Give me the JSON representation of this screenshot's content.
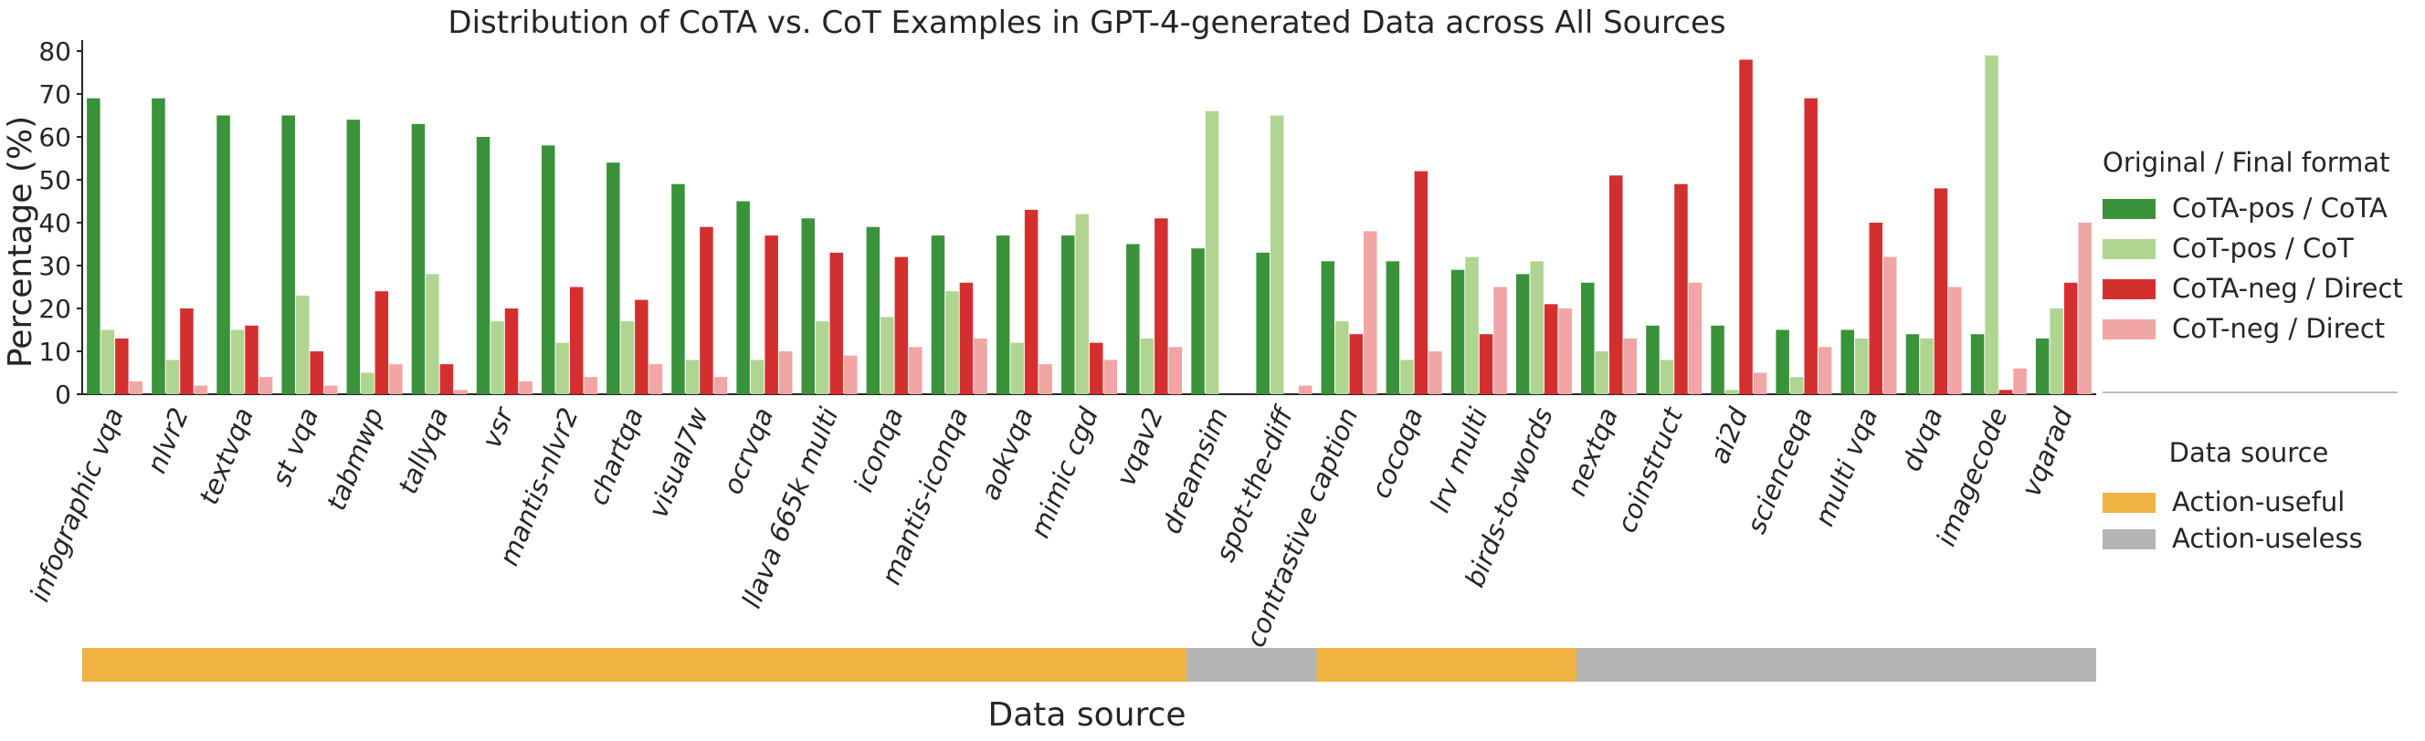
{
  "chart_data": {
    "type": "bar",
    "title": "Distribution of CoTA vs. CoT Examples in GPT-4-generated Data across All Sources",
    "xlabel": "Data source",
    "ylabel": "Percentage (%)",
    "ylim": [
      0,
      80
    ],
    "yticks": [
      "0",
      "10",
      "20",
      "30",
      "40",
      "50",
      "60",
      "70",
      "80"
    ],
    "grid": false,
    "categories": [
      "infographic vqa",
      "nlvr2",
      "textvqa",
      "st vqa",
      "tabmwp",
      "tallyqa",
      "vsr",
      "mantis-nlvr2",
      "chartqa",
      "visual7w",
      "ocrvqa",
      "llava 665k multi",
      "iconqa",
      "mantis-iconqa",
      "aokvqa",
      "mimic cgd",
      "vqav2",
      "dreamsim",
      "spot-the-diff",
      "contrastive caption",
      "cocoqa",
      "lrv multi",
      "birds-to-words",
      "nextqa",
      "coinstruct",
      "ai2d",
      "scienceqa",
      "multi vqa",
      "dvqa",
      "imagecode",
      "vqarad"
    ],
    "series": [
      {
        "name": "CoTA-pos / CoTA",
        "color": "#3a923a",
        "values": [
          69,
          69,
          65,
          65,
          64,
          63,
          60,
          58,
          54,
          49,
          45,
          41,
          39,
          37,
          37,
          37,
          35,
          34,
          33,
          31,
          31,
          29,
          28,
          26,
          16,
          16,
          15,
          15,
          14,
          14,
          13
        ]
      },
      {
        "name": "CoT-pos / CoT",
        "color": "#afd591",
        "values": [
          15,
          8,
          15,
          23,
          5,
          28,
          17,
          12,
          17,
          8,
          8,
          17,
          18,
          24,
          12,
          42,
          13,
          66,
          65,
          17,
          8,
          32,
          31,
          10,
          8,
          1,
          4,
          13,
          13,
          79,
          20
        ]
      },
      {
        "name": "CoTA-neg / Direct",
        "color": "#d42f2f",
        "values": [
          13,
          20,
          16,
          10,
          24,
          7,
          20,
          25,
          22,
          39,
          37,
          33,
          32,
          26,
          43,
          12,
          41,
          0,
          0,
          14,
          52,
          14,
          21,
          51,
          49,
          78,
          69,
          40,
          48,
          1,
          26
        ]
      },
      {
        "name": "CoT-neg / Direct",
        "color": "#f2a5a5",
        "values": [
          3,
          2,
          4,
          2,
          7,
          1,
          3,
          4,
          7,
          4,
          10,
          9,
          11,
          13,
          7,
          8,
          11,
          0,
          2,
          38,
          10,
          25,
          20,
          13,
          26,
          5,
          11,
          32,
          25,
          6,
          40
        ]
      }
    ],
    "source_bands": [
      {
        "label": "Action-useful",
        "from": "infographic vqa",
        "to": "vqav2"
      },
      {
        "label": "Action-useless",
        "from": "dreamsim",
        "to": "spot-the-diff"
      },
      {
        "label": "Action-useful",
        "from": "contrastive caption",
        "to": "birds-to-words"
      },
      {
        "label": "Action-useless",
        "from": "nextqa",
        "to": "vqarad"
      }
    ],
    "legend_format": {
      "title": "Original / Final format",
      "placement": "right"
    },
    "legend_source": {
      "title": "Data source",
      "placement": "right",
      "items": [
        {
          "label": "Action-useful",
          "color": "#f0b341"
        },
        {
          "label": "Action-useless",
          "color": "#b4b4b4"
        }
      ]
    }
  }
}
